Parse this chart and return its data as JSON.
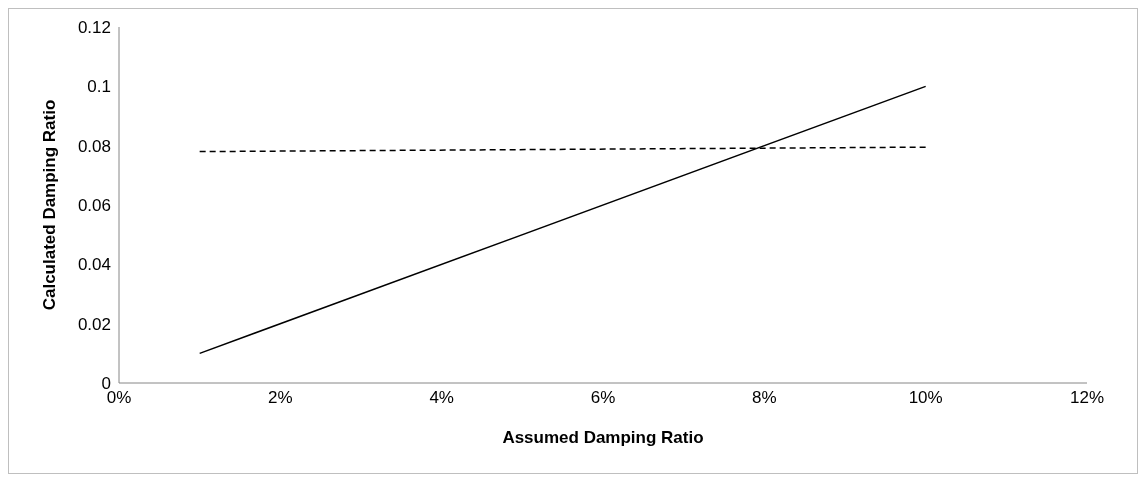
{
  "chart_data": {
    "type": "line",
    "xlabel": "Assumed Damping Ratio",
    "ylabel": "Calculated Damping Ratio",
    "x": [
      1,
      10
    ],
    "series": [
      {
        "color": "#000000",
        "line_style": "solid",
        "values": [
          0.01,
          0.1
        ]
      },
      {
        "color": "#000000",
        "line_style": "dashed",
        "values": [
          0.078,
          0.0795
        ]
      }
    ],
    "xlim": [
      0,
      12
    ],
    "xticks": [
      {
        "value": 0,
        "label": "0%"
      },
      {
        "value": 2,
        "label": "2%"
      },
      {
        "value": 4,
        "label": "4%"
      },
      {
        "value": 6,
        "label": "6%"
      },
      {
        "value": 8,
        "label": "8%"
      },
      {
        "value": 10,
        "label": "10%"
      },
      {
        "value": 12,
        "label": "12%"
      }
    ],
    "ylim": [
      0,
      0.12
    ],
    "yticks": [
      0,
      0.02,
      0.04,
      0.06,
      0.08,
      0.1,
      0.12
    ],
    "grid": false,
    "marker": "none"
  }
}
